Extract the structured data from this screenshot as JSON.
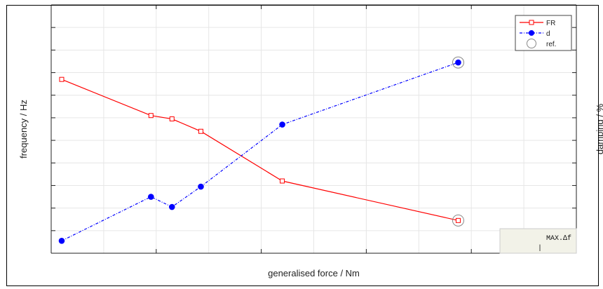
{
  "chart_data": {
    "type": "line",
    "xlabel": "generalised force / Nm",
    "ylabel_left": "frequency / Hz",
    "ylabel_right": "damping / %",
    "grid": true,
    "legend_placement": "top-right",
    "xlim": [
      0,
      10
    ],
    "ylim": [
      0,
      11
    ],
    "series": [
      {
        "name": "FR",
        "color": "#ff0000",
        "marker": "open-square",
        "line_style": "solid",
        "x": [
          0.2,
          1.9,
          2.3,
          2.85,
          4.4,
          7.75
        ],
        "y": [
          7.7,
          6.1,
          5.95,
          5.4,
          3.2,
          1.45
        ]
      },
      {
        "name": "d",
        "color": "#0000ff",
        "marker": "filled-circle",
        "line_style": "dash-dot",
        "x": [
          0.2,
          1.9,
          2.3,
          2.85,
          4.4,
          7.75
        ],
        "y": [
          0.55,
          2.5,
          2.05,
          2.95,
          5.7,
          8.45
        ]
      }
    ],
    "reference": {
      "name": "ref.",
      "marker": "open-circle",
      "x": 7.75,
      "y_values": [
        1.45,
        8.45
      ]
    },
    "annotation": {
      "label": "MAX.∆f",
      "value": "|"
    }
  },
  "colors": {
    "fr": "#ff0000",
    "d": "#0000ff",
    "ref": "#888888",
    "grid": "#e6e6e6",
    "annotation_bg": "#f2f2e8"
  }
}
